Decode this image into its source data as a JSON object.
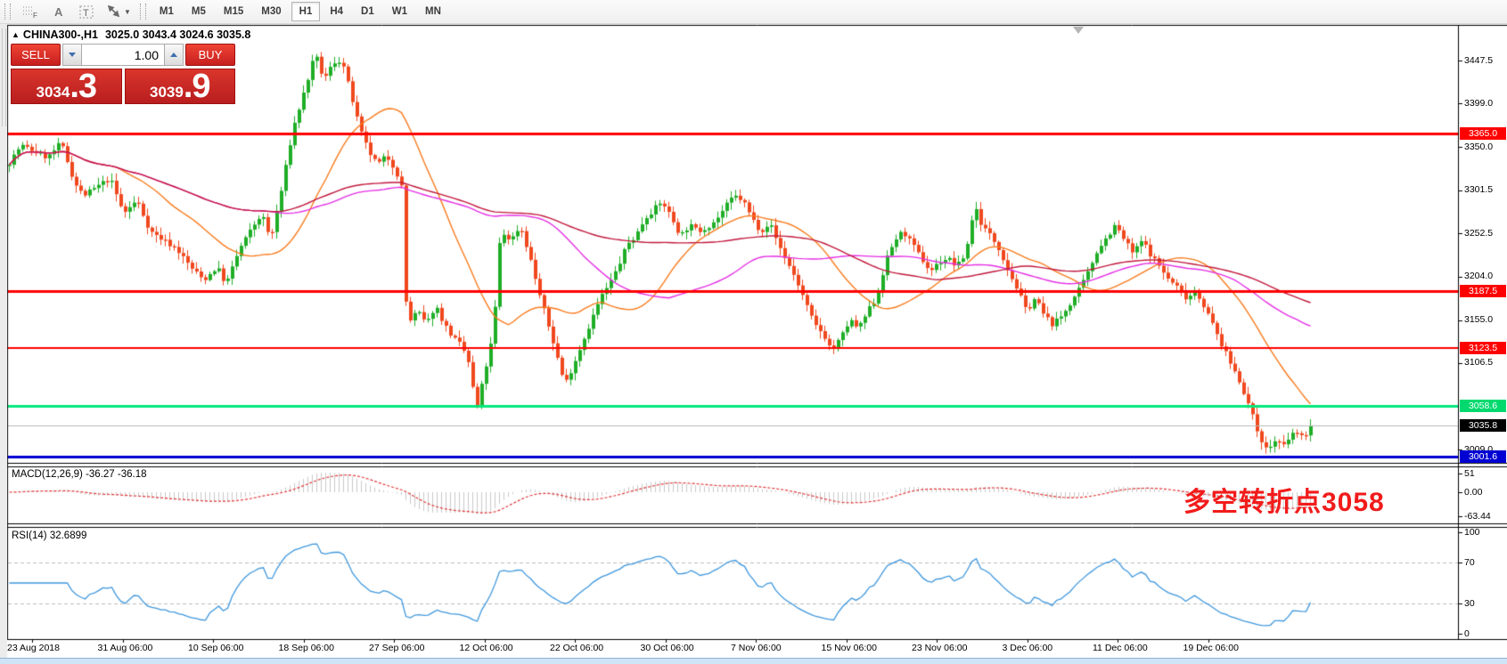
{
  "toolbar": {
    "icons": [
      {
        "name": "grid-f-icon",
        "glyph": "F"
      },
      {
        "name": "letter-a-icon",
        "glyph": "A"
      },
      {
        "name": "text-box-icon",
        "glyph": "T"
      },
      {
        "name": "diagonal-arrows-icon",
        "glyph": ""
      }
    ],
    "timeframes": [
      "M1",
      "M5",
      "M15",
      "M30",
      "H1",
      "H4",
      "D1",
      "W1",
      "MN"
    ],
    "active_timeframe": "H1"
  },
  "chart": {
    "title_symbol": "CHINA300-,H1",
    "title_ohlc": "3025.0 3043.4 3024.6 3035.8"
  },
  "trade_panel": {
    "sell_label": "SELL",
    "buy_label": "BUY",
    "volume": "1.00",
    "sell_price_main": "3034",
    "sell_price_frac": ".3",
    "buy_price_main": "3039",
    "buy_price_frac": ".9"
  },
  "price_axis": {
    "ticks": [
      {
        "label": "3447.5",
        "price": 3447.5
      },
      {
        "label": "3399.0",
        "price": 3399.0
      },
      {
        "label": "3350.0",
        "price": 3350.0
      },
      {
        "label": "3301.5",
        "price": 3301.5
      },
      {
        "label": "3252.5",
        "price": 3252.5
      },
      {
        "label": "3204.0",
        "price": 3204.0
      },
      {
        "label": "3155.0",
        "price": 3155.0
      },
      {
        "label": "3106.5",
        "price": 3106.5
      },
      {
        "label": "3009.0",
        "price": 3009.0
      }
    ]
  },
  "macd": {
    "label": "MACD(12,26,9) -36.27 -36.18",
    "axis": [
      51,
      0.0,
      -63.44
    ],
    "axis_labels": [
      "51",
      "0.00",
      "-63.44"
    ]
  },
  "rsi": {
    "label": "RSI(14) 32.6899",
    "axis": [
      100,
      70,
      30,
      0
    ],
    "axis_labels": [
      "100",
      "70",
      "30",
      "0"
    ],
    "dashed_levels": [
      70,
      30
    ]
  },
  "time_axis": {
    "labels": [
      "23 Aug 2018",
      "31 Aug 06:00",
      "10 Sep 06:00",
      "18 Sep 06:00",
      "27 Sep 06:00",
      "12 Oct 06:00",
      "22 Oct 06:00",
      "30 Oct 06:00",
      "7 Nov 06:00",
      "15 Nov 06:00",
      "23 Nov 06:00",
      "3 Dec 06:00",
      "11 Dec 06:00",
      "19 Dec 06:00"
    ]
  },
  "annotation": {
    "text": "多空转折点3058",
    "color": "#f21b1b"
  },
  "colors": {
    "candle_up": "#1fae27",
    "candle_down": "#f0481e",
    "ma_fast": "#f97b1d",
    "ma_medium": "#e52ee5",
    "ma_slow": "#c2183c",
    "macd_histogram": "#c9c9c9",
    "macd_signal": "#e03535",
    "rsi_line": "#3e97dd",
    "dashed_level": "#bbbbbb",
    "buy_sell_red": "#c61f1f"
  },
  "chart_data": {
    "type": "candlestick",
    "symbol": "CHINA300-",
    "timeframe": "H1",
    "current_bar": {
      "open": 3025.0,
      "high": 3043.4,
      "low": 3024.6,
      "close": 3035.8
    },
    "bid": 3034.3,
    "ask": 3039.9,
    "y_range": [
      2990,
      3470
    ],
    "levels": [
      {
        "label": "3365.0",
        "price": 3365.0,
        "color": "#ff0000",
        "line_width": 3,
        "label_bg": "#ff0000"
      },
      {
        "label": "3187.5",
        "price": 3187.5,
        "color": "#ff0000",
        "line_width": 3,
        "label_bg": "#ff0000"
      },
      {
        "label": "3123.5",
        "price": 3123.5,
        "color": "#ff0000",
        "line_width": 2,
        "label_bg": "#ff0000"
      },
      {
        "label": "3058.6",
        "price": 3058.6,
        "color": "#00e97b",
        "line_width": 3,
        "label_bg": "#00d96e"
      },
      {
        "label": "3035.8",
        "price": 3035.8,
        "color": "#b9b9b9",
        "line_width": 1,
        "label_bg": "#000000"
      },
      {
        "label": "3001.6",
        "price": 3001.6,
        "color": "#0000d2",
        "line_width": 3,
        "label_bg": "#0000d2"
      }
    ],
    "moving_averages": [
      {
        "name": "fast",
        "window": 24,
        "color": "#f97b1d"
      },
      {
        "name": "medium",
        "window": 60,
        "color": "#e52ee5"
      },
      {
        "name": "slow",
        "window": 120,
        "color": "#c2183c"
      }
    ],
    "macd_settings": {
      "fast": 12,
      "slow": 26,
      "signal": 9,
      "current": [
        -36.27,
        -36.18
      ]
    },
    "rsi_settings": {
      "period": 14,
      "current": 32.6899
    },
    "price_path": [
      [
        10,
        3330
      ],
      [
        25,
        3352
      ],
      [
        40,
        3345
      ],
      [
        55,
        3338
      ],
      [
        70,
        3355
      ],
      [
        85,
        3310
      ],
      [
        95,
        3295
      ],
      [
        110,
        3305
      ],
      [
        125,
        3315
      ],
      [
        140,
        3275
      ],
      [
        155,
        3290
      ],
      [
        170,
        3255
      ],
      [
        185,
        3245
      ],
      [
        200,
        3235
      ],
      [
        215,
        3215
      ],
      [
        230,
        3200
      ],
      [
        245,
        3215
      ],
      [
        255,
        3195
      ],
      [
        270,
        3235
      ],
      [
        285,
        3260
      ],
      [
        295,
        3275
      ],
      [
        305,
        3245
      ],
      [
        315,
        3290
      ],
      [
        330,
        3370
      ],
      [
        345,
        3420
      ],
      [
        355,
        3455
      ],
      [
        365,
        3425
      ],
      [
        375,
        3445
      ],
      [
        385,
        3448
      ],
      [
        395,
        3410
      ],
      [
        405,
        3370
      ],
      [
        415,
        3345
      ],
      [
        425,
        3330
      ],
      [
        435,
        3340
      ],
      [
        445,
        3325
      ],
      [
        452,
        3305
      ],
      [
        458,
        3150
      ],
      [
        470,
        3165
      ],
      [
        480,
        3150
      ],
      [
        490,
        3172
      ],
      [
        500,
        3150
      ],
      [
        510,
        3135
      ],
      [
        520,
        3125
      ],
      [
        528,
        3105
      ],
      [
        536,
        3052
      ],
      [
        545,
        3095
      ],
      [
        555,
        3140
      ],
      [
        563,
        3255
      ],
      [
        575,
        3245
      ],
      [
        585,
        3262
      ],
      [
        595,
        3230
      ],
      [
        605,
        3190
      ],
      [
        615,
        3155
      ],
      [
        625,
        3120
      ],
      [
        635,
        3082
      ],
      [
        645,
        3105
      ],
      [
        655,
        3130
      ],
      [
        665,
        3155
      ],
      [
        675,
        3180
      ],
      [
        685,
        3195
      ],
      [
        695,
        3215
      ],
      [
        705,
        3240
      ],
      [
        715,
        3250
      ],
      [
        725,
        3270
      ],
      [
        735,
        3280
      ],
      [
        745,
        3288
      ],
      [
        755,
        3270
      ],
      [
        765,
        3250
      ],
      [
        775,
        3262
      ],
      [
        785,
        3255
      ],
      [
        795,
        3260
      ],
      [
        805,
        3268
      ],
      [
        815,
        3282
      ],
      [
        825,
        3295
      ],
      [
        835,
        3290
      ],
      [
        845,
        3270
      ],
      [
        855,
        3255
      ],
      [
        865,
        3265
      ],
      [
        875,
        3240
      ],
      [
        885,
        3220
      ],
      [
        895,
        3200
      ],
      [
        905,
        3175
      ],
      [
        915,
        3150
      ],
      [
        925,
        3140
      ],
      [
        935,
        3120
      ],
      [
        945,
        3135
      ],
      [
        955,
        3155
      ],
      [
        965,
        3145
      ],
      [
        975,
        3165
      ],
      [
        985,
        3180
      ],
      [
        995,
        3220
      ],
      [
        1005,
        3245
      ],
      [
        1015,
        3255
      ],
      [
        1025,
        3240
      ],
      [
        1035,
        3225
      ],
      [
        1045,
        3210
      ],
      [
        1055,
        3220
      ],
      [
        1065,
        3225
      ],
      [
        1075,
        3215
      ],
      [
        1085,
        3230
      ],
      [
        1095,
        3285
      ],
      [
        1103,
        3262
      ],
      [
        1113,
        3250
      ],
      [
        1123,
        3235
      ],
      [
        1133,
        3210
      ],
      [
        1143,
        3190
      ],
      [
        1153,
        3165
      ],
      [
        1163,
        3180
      ],
      [
        1173,
        3160
      ],
      [
        1183,
        3150
      ],
      [
        1193,
        3160
      ],
      [
        1203,
        3175
      ],
      [
        1213,
        3190
      ],
      [
        1223,
        3210
      ],
      [
        1233,
        3235
      ],
      [
        1243,
        3248
      ],
      [
        1253,
        3262
      ],
      [
        1263,
        3245
      ],
      [
        1273,
        3230
      ],
      [
        1283,
        3245
      ],
      [
        1293,
        3228
      ],
      [
        1303,
        3215
      ],
      [
        1313,
        3200
      ],
      [
        1323,
        3192
      ],
      [
        1333,
        3180
      ],
      [
        1343,
        3188
      ],
      [
        1353,
        3170
      ],
      [
        1363,
        3148
      ],
      [
        1373,
        3125
      ],
      [
        1383,
        3105
      ],
      [
        1393,
        3085
      ],
      [
        1403,
        3058
      ],
      [
        1413,
        3028
      ],
      [
        1423,
        3008
      ],
      [
        1433,
        3020
      ],
      [
        1443,
        3012
      ],
      [
        1453,
        3030
      ],
      [
        1463,
        3022
      ],
      [
        1473,
        3036
      ]
    ]
  }
}
